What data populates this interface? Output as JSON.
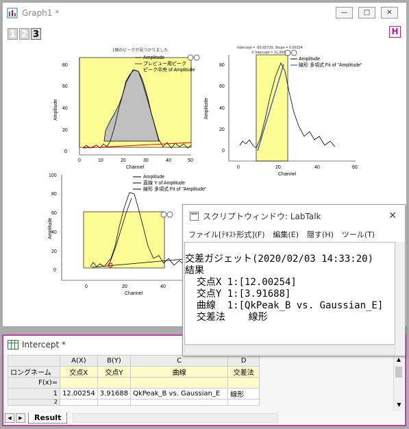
{
  "graph": {
    "title": "Graph1 *",
    "tabs": [
      "1",
      "2",
      "3"
    ],
    "h_button": "H",
    "chart1": {
      "header": "1個のピークが見つかりました",
      "legend": [
        "Amplitude",
        "プレビュー用ピーク",
        "ピーク中央 of Amplitude"
      ],
      "xlabel": "Channel",
      "ylabel": "Amplitude",
      "xticks": [
        "0",
        "10",
        "20",
        "30",
        "40",
        "50"
      ],
      "yticks": [
        "0",
        "20",
        "40",
        "60",
        "80"
      ]
    },
    "chart2": {
      "header1": "Intercept = -65.65739, Slope = 6.06324",
      "header2": "X Intercept = 11.39854",
      "legend": [
        "Amplitude",
        "線形 多項式 Fit of \"Amplitude\""
      ],
      "xlabel": "Channel",
      "ylabel": "Amplitude",
      "xticks": [
        "0",
        "20",
        "40",
        "60"
      ],
      "yticks": [
        "0",
        "20",
        "40",
        "60",
        "80"
      ]
    },
    "chart3": {
      "legend": [
        "Amplitude",
        "直線 Y of Amplitude",
        "線形 多項式 Fit of \"Amplitude\""
      ],
      "xlabel": "Channel",
      "ylabel": "Amplitude",
      "xticks": [
        "0",
        "20",
        "40"
      ],
      "yticks": [
        "0",
        "20",
        "40",
        "60",
        "80",
        "100"
      ]
    }
  },
  "script_window": {
    "title": "スクリプトウィンドウ: LabTalk",
    "menu": [
      "ファイル[ﾃｷｽﾄ形式](F)",
      "編集(E)",
      "隠す(H)",
      "ツール(T)"
    ],
    "output": "交差ガジェット(2020/02/03 14:33:20)\n結果\n  交点X 1:[12.00254]\n  交点Y 1:[3.91688]\n  曲線  1:[QkPeak_B vs. Gaussian_E]\n  交差法    線形"
  },
  "workbook": {
    "title": "Intercept *",
    "columns": [
      "A(X)",
      "B(Y)",
      "C",
      "D"
    ],
    "row_labels": [
      "ロングネーム",
      "F(x)=",
      "1",
      "2"
    ],
    "longnames": [
      "交点X",
      "交点Y",
      "曲線",
      "交差法"
    ],
    "row1": [
      "12.00254",
      "3.91688",
      "QkPeak_B vs. Gaussian_E",
      "線形"
    ],
    "sheet_tab": "Result"
  },
  "colors": {
    "panel": "#fdfd96",
    "accent": "#c03fa0"
  }
}
